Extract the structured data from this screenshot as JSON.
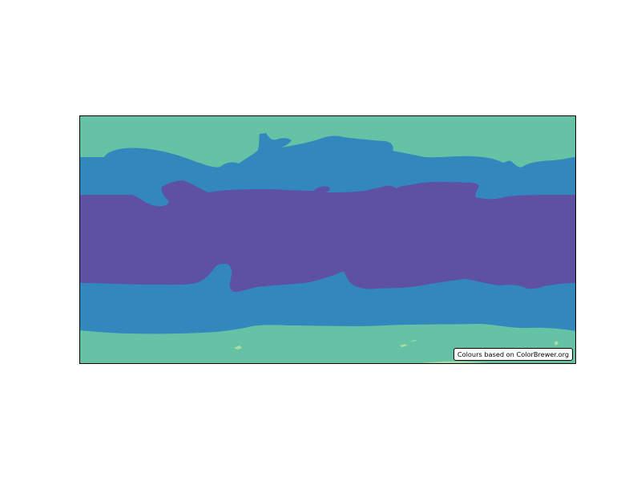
{
  "map": {
    "credit_text": "Colours based on ColorBrewer.org",
    "band_colors": {
      "polar": "#66c2a5",
      "temperate": "#3288bd",
      "tropical": "#5e51a3",
      "small_patches": "#abdda4",
      "frame": "#000000",
      "background": "#ffffff"
    }
  }
}
